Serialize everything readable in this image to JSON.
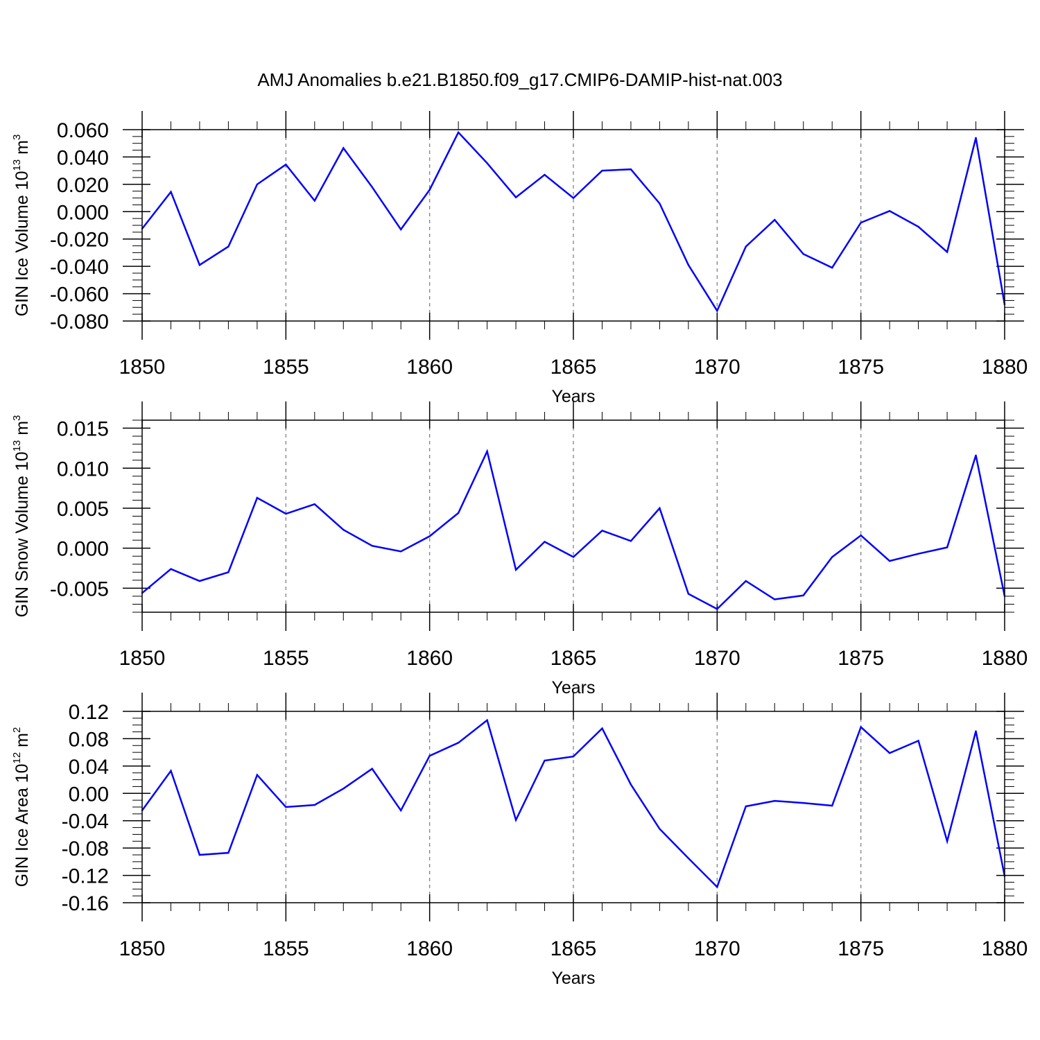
{
  "title": "AMJ Anomalies b.e21.B1850.f09_g17.CMIP6-DAMIP-hist-nat.003",
  "line_color": "#0000ff",
  "chart_data": [
    {
      "type": "line",
      "id": "ice-volume",
      "ylabel_main": "GIN Ice Volume 10",
      "ylabel_sup": "13",
      "ylabel_unit": " m",
      "ylabel_unit_sup": "3",
      "xlabel": "Years",
      "xlim": [
        1850,
        1880
      ],
      "ylim": [
        -0.08,
        0.06
      ],
      "x_ticks": [
        1850,
        1855,
        1860,
        1865,
        1870,
        1875,
        1880
      ],
      "y_ticks": [
        0.06,
        0.04,
        0.02,
        0.0,
        -0.02,
        -0.04,
        -0.06,
        -0.08
      ],
      "y_tick_labels": [
        "0.060",
        "0.040",
        "0.020",
        "0.000",
        "-0.020",
        "-0.040",
        "-0.060",
        "-0.080"
      ],
      "y_minor_step": 0.005,
      "x": [
        1850,
        1851,
        1852,
        1853,
        1854,
        1855,
        1856,
        1857,
        1858,
        1859,
        1860,
        1861,
        1862,
        1863,
        1864,
        1865,
        1866,
        1867,
        1868,
        1869,
        1870,
        1871,
        1872,
        1873,
        1874,
        1875,
        1876,
        1877,
        1878,
        1879,
        1880
      ],
      "values": [
        -0.0125,
        0.0145,
        -0.039,
        -0.0255,
        0.02,
        0.0345,
        0.008,
        0.0465,
        0.018,
        -0.013,
        0.016,
        0.058,
        0.0355,
        0.0105,
        0.027,
        0.01,
        0.03,
        0.031,
        0.006,
        -0.039,
        -0.0725,
        -0.0255,
        -0.006,
        -0.031,
        -0.041,
        -0.008,
        0.0005,
        -0.011,
        -0.0295,
        0.054,
        -0.068
      ]
    },
    {
      "type": "line",
      "id": "snow-volume",
      "ylabel_main": "GIN Snow Volume 10",
      "ylabel_sup": "13",
      "ylabel_unit": " m",
      "ylabel_unit_sup": "3",
      "xlabel": "Years",
      "xlim": [
        1850,
        1880
      ],
      "ylim": [
        -0.008,
        0.016
      ],
      "x_ticks": [
        1850,
        1855,
        1860,
        1865,
        1870,
        1875,
        1880
      ],
      "y_ticks": [
        0.015,
        0.01,
        0.005,
        0.0,
        -0.005
      ],
      "y_tick_labels": [
        "0.015",
        "0.010",
        "0.005",
        "0.000",
        "-0.005"
      ],
      "y_minor_step": 0.001,
      "x": [
        1850,
        1851,
        1852,
        1853,
        1854,
        1855,
        1856,
        1857,
        1858,
        1859,
        1860,
        1861,
        1862,
        1863,
        1864,
        1865,
        1866,
        1867,
        1868,
        1869,
        1870,
        1871,
        1872,
        1873,
        1874,
        1875,
        1876,
        1877,
        1878,
        1879,
        1880
      ],
      "values": [
        -0.0056,
        -0.0026,
        -0.0041,
        -0.003,
        0.0063,
        0.0043,
        0.0055,
        0.0023,
        0.0003,
        -0.0004,
        0.0015,
        0.0044,
        0.0121,
        -0.0027,
        0.0008,
        -0.0011,
        0.0022,
        0.0009,
        0.005,
        -0.0057,
        -0.0076,
        -0.0041,
        -0.0064,
        -0.0059,
        -0.0011,
        0.0016,
        -0.0016,
        -0.0007,
        0.0001,
        0.0116,
        -0.006
      ]
    },
    {
      "type": "line",
      "id": "ice-area",
      "ylabel_main": "GIN Ice Area 10",
      "ylabel_sup": "12",
      "ylabel_unit": " m",
      "ylabel_unit_sup": "2",
      "xlabel": "Years",
      "xlim": [
        1850,
        1880
      ],
      "ylim": [
        -0.16,
        0.12
      ],
      "x_ticks": [
        1850,
        1855,
        1860,
        1865,
        1870,
        1875,
        1880
      ],
      "y_ticks": [
        0.12,
        0.08,
        0.04,
        0.0,
        -0.04,
        -0.08,
        -0.12,
        -0.16
      ],
      "y_tick_labels": [
        "0.12",
        "0.08",
        "0.04",
        "0.00",
        "-0.04",
        "-0.08",
        "-0.12",
        "-0.16"
      ],
      "y_minor_step": 0.01,
      "x": [
        1850,
        1851,
        1852,
        1853,
        1854,
        1855,
        1856,
        1857,
        1858,
        1859,
        1860,
        1861,
        1862,
        1863,
        1864,
        1865,
        1866,
        1867,
        1868,
        1869,
        1870,
        1871,
        1872,
        1873,
        1874,
        1875,
        1876,
        1877,
        1878,
        1879,
        1880
      ],
      "values": [
        -0.025,
        0.033,
        -0.09,
        -0.087,
        0.027,
        -0.02,
        -0.017,
        0.007,
        0.036,
        -0.025,
        0.055,
        0.074,
        0.107,
        -0.039,
        0.048,
        0.054,
        0.095,
        0.013,
        -0.052,
        -0.095,
        -0.137,
        -0.019,
        -0.011,
        -0.014,
        -0.018,
        0.097,
        0.059,
        0.077,
        -0.07,
        0.091,
        -0.121
      ]
    }
  ]
}
